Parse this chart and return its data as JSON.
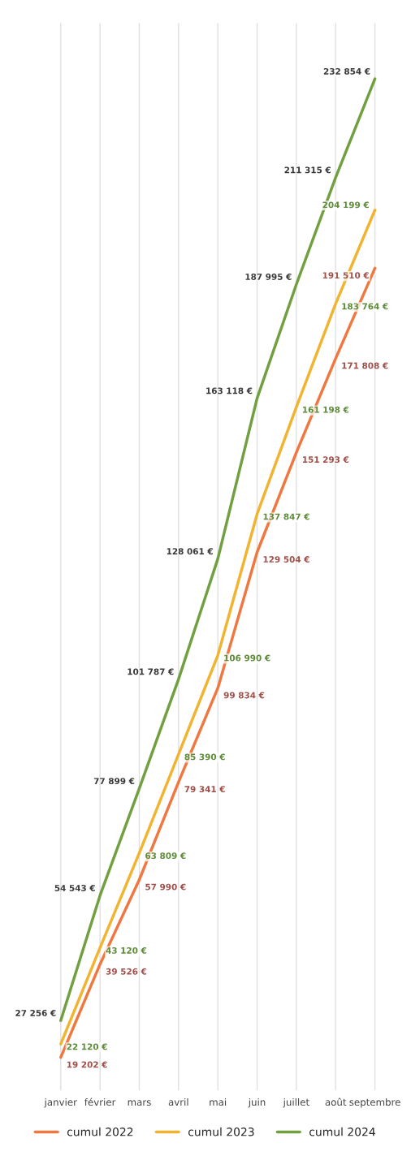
{
  "chart_data": {
    "type": "line",
    "categories": [
      "janvier",
      "février",
      "mars",
      "avril",
      "mai",
      "juin",
      "juillet",
      "août",
      "septembre"
    ],
    "series": [
      {
        "name": "cumul 2022",
        "color": "#f07840",
        "values": [
          19202,
          39526,
          57990,
          79341,
          99834,
          129504,
          151293,
          171808,
          191510
        ],
        "value_labels": [
          "19 202 €",
          "39 526 €",
          "57 990 €",
          "79 341 €",
          "99 834 €",
          "129 504 €",
          "151 293 €",
          "171 808 €",
          "191 510 €"
        ]
      },
      {
        "name": "cumul 2023",
        "color": "#f2b430",
        "values": [
          22120,
          43120,
          63809,
          85390,
          106990,
          137847,
          161198,
          183764,
          204199
        ],
        "value_labels": [
          "22 120 €",
          "43 120 €",
          "63 809 €",
          "85 390 €",
          "106 990 €",
          "137 847 €",
          "161 198 €",
          "183 764 €",
          "204 199 €"
        ]
      },
      {
        "name": "cumul 2024",
        "color": "#70a040",
        "values": [
          27256,
          54543,
          77899,
          101787,
          128061,
          163118,
          187995,
          211315,
          232854
        ],
        "value_labels": [
          "27 256 €",
          "54 543 €",
          "77 899 €",
          "101 787 €",
          "128 061 €",
          "163 118 €",
          "187 995 €",
          "211 315 €",
          "232 854 €"
        ]
      }
    ],
    "ylim": [
      12000,
      245000
    ],
    "grid": "x",
    "legend": "bottom",
    "tick_labels": "x"
  }
}
